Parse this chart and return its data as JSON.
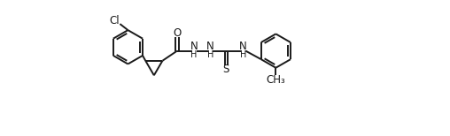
{
  "background_color": "#ffffff",
  "line_color": "#1a1a1a",
  "line_width": 1.4,
  "font_size": 8.5,
  "figsize": [
    5.08,
    1.54
  ],
  "dpi": 100,
  "xlim": [
    -0.3,
    10.8
  ],
  "ylim": [
    -2.2,
    3.0
  ]
}
